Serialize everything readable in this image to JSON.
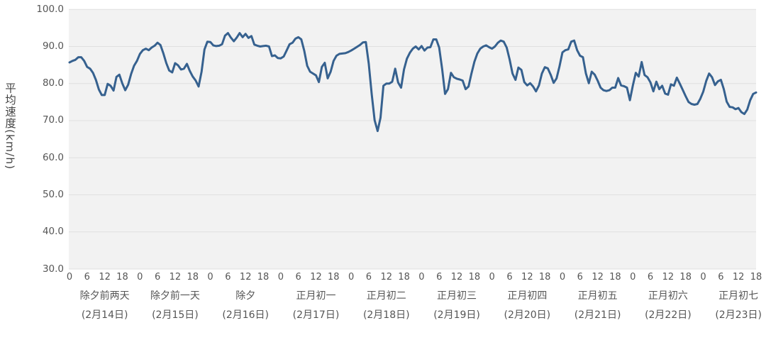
{
  "chart_data": {
    "type": "line",
    "title": "",
    "ylabel": "平均速度(km/h)",
    "xlabel": "",
    "ylim": [
      30,
      100
    ],
    "ytick_step": 10,
    "ytick_labels": [
      "100.0",
      "90.0",
      "80.0",
      "70.0",
      "60.0",
      "50.0",
      "40.0",
      "30.0"
    ],
    "hour_ticks": [
      0,
      6,
      12,
      18
    ],
    "legend": "none",
    "grid": "horizontal",
    "line_color": "#36618f",
    "plot_bg": "#f2f2f2",
    "grid_color": "#e0e0e0",
    "text_color": "#555555",
    "series_name": "平均速度",
    "days": [
      {
        "name": "除夕前两天",
        "date": "(2月14日)",
        "values": [
          85.7,
          86.1,
          86.4,
          87.1,
          87.1,
          86.1,
          84.5,
          84.0,
          82.9,
          81.0,
          78.4,
          76.9,
          76.9,
          79.9,
          79.4,
          78.1,
          81.8,
          82.4,
          80.0,
          78.2,
          79.7,
          82.6,
          84.8,
          86.1
        ]
      },
      {
        "name": "除夕前一天",
        "date": "(2月15日)",
        "values": [
          88.0,
          89.0,
          89.4,
          89.0,
          89.7,
          90.2,
          91.0,
          90.4,
          88.1,
          85.5,
          83.5,
          83.0,
          85.5,
          84.9,
          83.8,
          84.0,
          85.3,
          83.4,
          81.9,
          80.8,
          79.2,
          83.2,
          89.2,
          91.3
        ]
      },
      {
        "name": "除夕",
        "date": "(2月16日)",
        "values": [
          91.2,
          90.3,
          90.1,
          90.2,
          90.6,
          92.9,
          93.6,
          92.4,
          91.4,
          92.4,
          93.6,
          92.5,
          93.4,
          92.3,
          92.8,
          90.5,
          90.2,
          90.0,
          90.1,
          90.2,
          90.0,
          87.4,
          87.6,
          86.9
        ]
      },
      {
        "name": "正月初一",
        "date": "(2月17日)",
        "values": [
          86.8,
          87.3,
          88.9,
          90.6,
          91.0,
          92.1,
          92.5,
          91.9,
          88.9,
          84.8,
          83.2,
          82.7,
          82.2,
          80.4,
          84.5,
          85.6,
          81.4,
          83.2,
          86.1,
          87.5,
          88.0,
          88.1,
          88.2,
          88.5
        ]
      },
      {
        "name": "正月初二",
        "date": "(2月18日)",
        "values": [
          88.9,
          89.4,
          89.9,
          90.4,
          91.1,
          91.2,
          85.4,
          77.1,
          70.1,
          67.2,
          70.8,
          79.4,
          80.0,
          80.0,
          80.5,
          84.0,
          80.3,
          78.9,
          83.8,
          86.7,
          88.3,
          89.4,
          90.0,
          89.2
        ]
      },
      {
        "name": "正月初三",
        "date": "(2月19日)",
        "values": [
          90.1,
          88.9,
          89.7,
          89.8,
          91.9,
          91.9,
          89.7,
          83.9,
          77.2,
          78.5,
          82.9,
          81.7,
          81.3,
          81.1,
          80.8,
          78.5,
          79.2,
          82.7,
          85.9,
          88.1,
          89.4,
          90.0,
          90.3,
          89.8
        ]
      },
      {
        "name": "正月初四",
        "date": "(2月20日)",
        "values": [
          89.4,
          90.0,
          91.0,
          91.6,
          91.3,
          89.7,
          86.5,
          82.7,
          81.0,
          84.3,
          83.7,
          80.4,
          79.5,
          80.1,
          79.2,
          77.9,
          79.5,
          82.7,
          84.4,
          84.1,
          82.4,
          80.2,
          81.4,
          84.6
        ]
      },
      {
        "name": "正月初五",
        "date": "(2月21日)",
        "values": [
          88.4,
          89.0,
          89.2,
          91.3,
          91.6,
          89.0,
          87.5,
          87.1,
          82.7,
          80.1,
          83.2,
          82.4,
          80.8,
          78.9,
          78.2,
          78.0,
          78.2,
          78.9,
          78.9,
          81.5,
          79.5,
          79.3,
          78.9,
          75.5
        ]
      },
      {
        "name": "正月初六",
        "date": "(2月22日)",
        "values": [
          79.5,
          82.9,
          81.9,
          85.8,
          82.3,
          81.7,
          80.3,
          77.9,
          80.5,
          78.5,
          79.4,
          77.3,
          77.0,
          79.8,
          79.4,
          81.6,
          80.0,
          78.3,
          76.6,
          75.0,
          74.5,
          74.3,
          74.5,
          75.9
        ]
      },
      {
        "name": "正月初七",
        "date": "(2月23日)",
        "values": [
          77.8,
          80.7,
          82.7,
          81.7,
          79.6,
          80.6,
          81.0,
          78.5,
          75.1,
          73.7,
          73.6,
          73.1,
          73.4,
          72.3,
          71.8,
          73.0,
          75.5,
          77.2,
          77.6
        ]
      }
    ]
  }
}
